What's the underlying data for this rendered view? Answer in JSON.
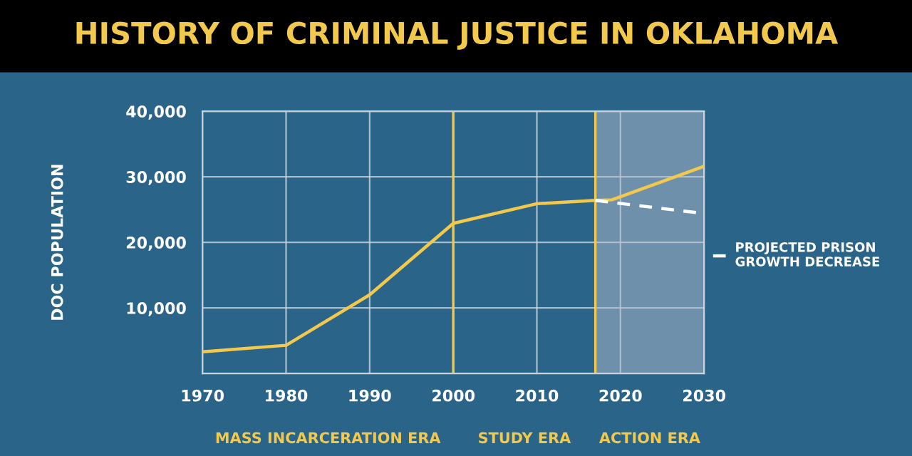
{
  "chart_data": {
    "type": "line",
    "title": "HISTORY OF CRIMINAL JUSTICE IN OKLAHOMA",
    "ylabel": "DOC POPULATION",
    "xlim": [
      1970,
      2030
    ],
    "xticks": [
      1970,
      1980,
      1990,
      2000,
      2010,
      2020,
      2030
    ],
    "ylim": [
      0,
      40000
    ],
    "yticks": [
      {
        "value": 10000,
        "label": "10,000"
      },
      {
        "value": 20000,
        "label": "20,000"
      },
      {
        "value": 30000,
        "label": "30,000"
      },
      {
        "value": 40000,
        "label": "40,000"
      }
    ],
    "grid": true,
    "legend": "right",
    "series": [
      {
        "color": "#f2c94c",
        "line_style": "solid",
        "x": [
          1970,
          1980,
          1990,
          2000,
          2010,
          2017,
          2019,
          2030
        ],
        "values": [
          3300,
          4300,
          12000,
          22900,
          25900,
          26400,
          26500,
          31600
        ]
      },
      {
        "name": "PROJECTED PRISON GROWTH DECREASE",
        "color": "#ffffff",
        "line_style": "dashed",
        "x": [
          2017,
          2030
        ],
        "values": [
          26400,
          24400
        ]
      }
    ],
    "ref_lines": [
      {
        "axis": "x",
        "value": 2000,
        "color": "#f2c94c"
      },
      {
        "axis": "x",
        "value": 2017,
        "color": "#f2c94c"
      }
    ],
    "bands": [
      {
        "axis": "x",
        "from": 2017,
        "to": 2030,
        "color": "#b4bccb"
      }
    ],
    "annotations": [
      "MASS INCARCERATION ERA",
      "STUDY ERA",
      "ACTION ERA"
    ]
  }
}
